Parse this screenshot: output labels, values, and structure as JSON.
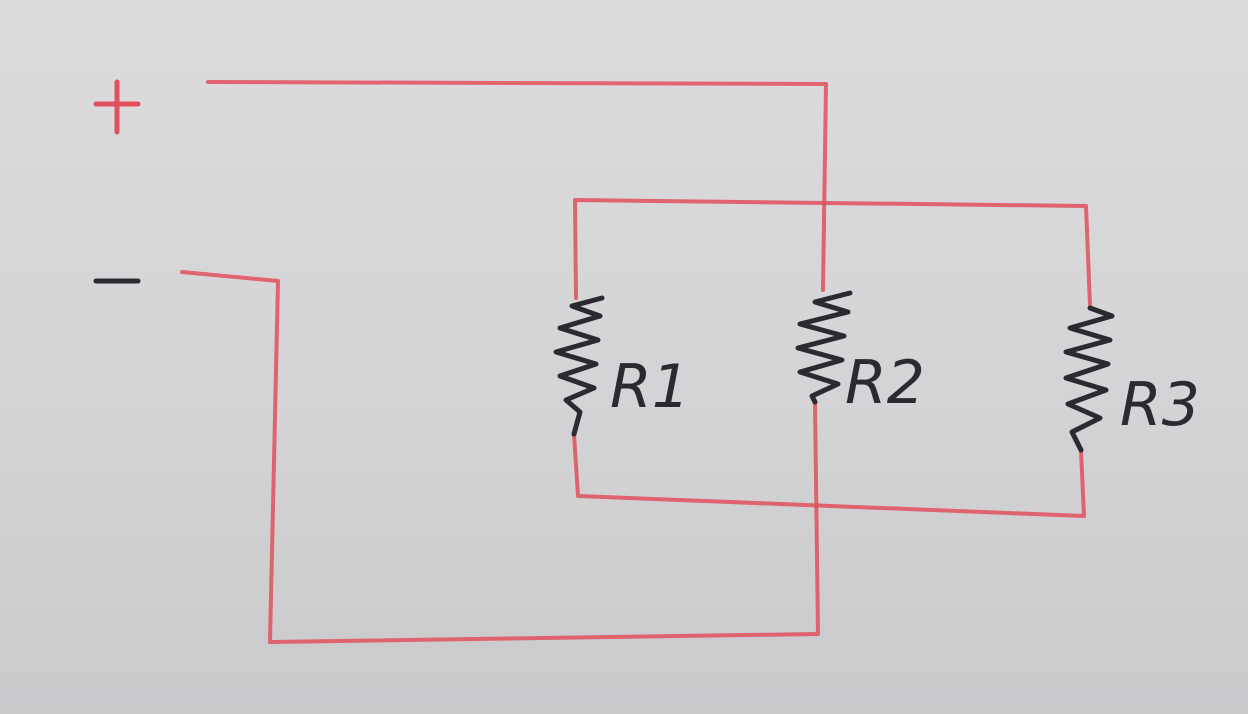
{
  "diagram": {
    "type": "parallel resistor circuit",
    "terminals": {
      "positive": "+",
      "negative": "-"
    },
    "resistors": [
      {
        "id": "r1",
        "label": "R1"
      },
      {
        "id": "r2",
        "label": "R2"
      },
      {
        "id": "r3",
        "label": "R3"
      }
    ],
    "colors": {
      "wire": "#e0505a",
      "resistor": "#2b2b2f",
      "board": "#d8d8da"
    }
  }
}
